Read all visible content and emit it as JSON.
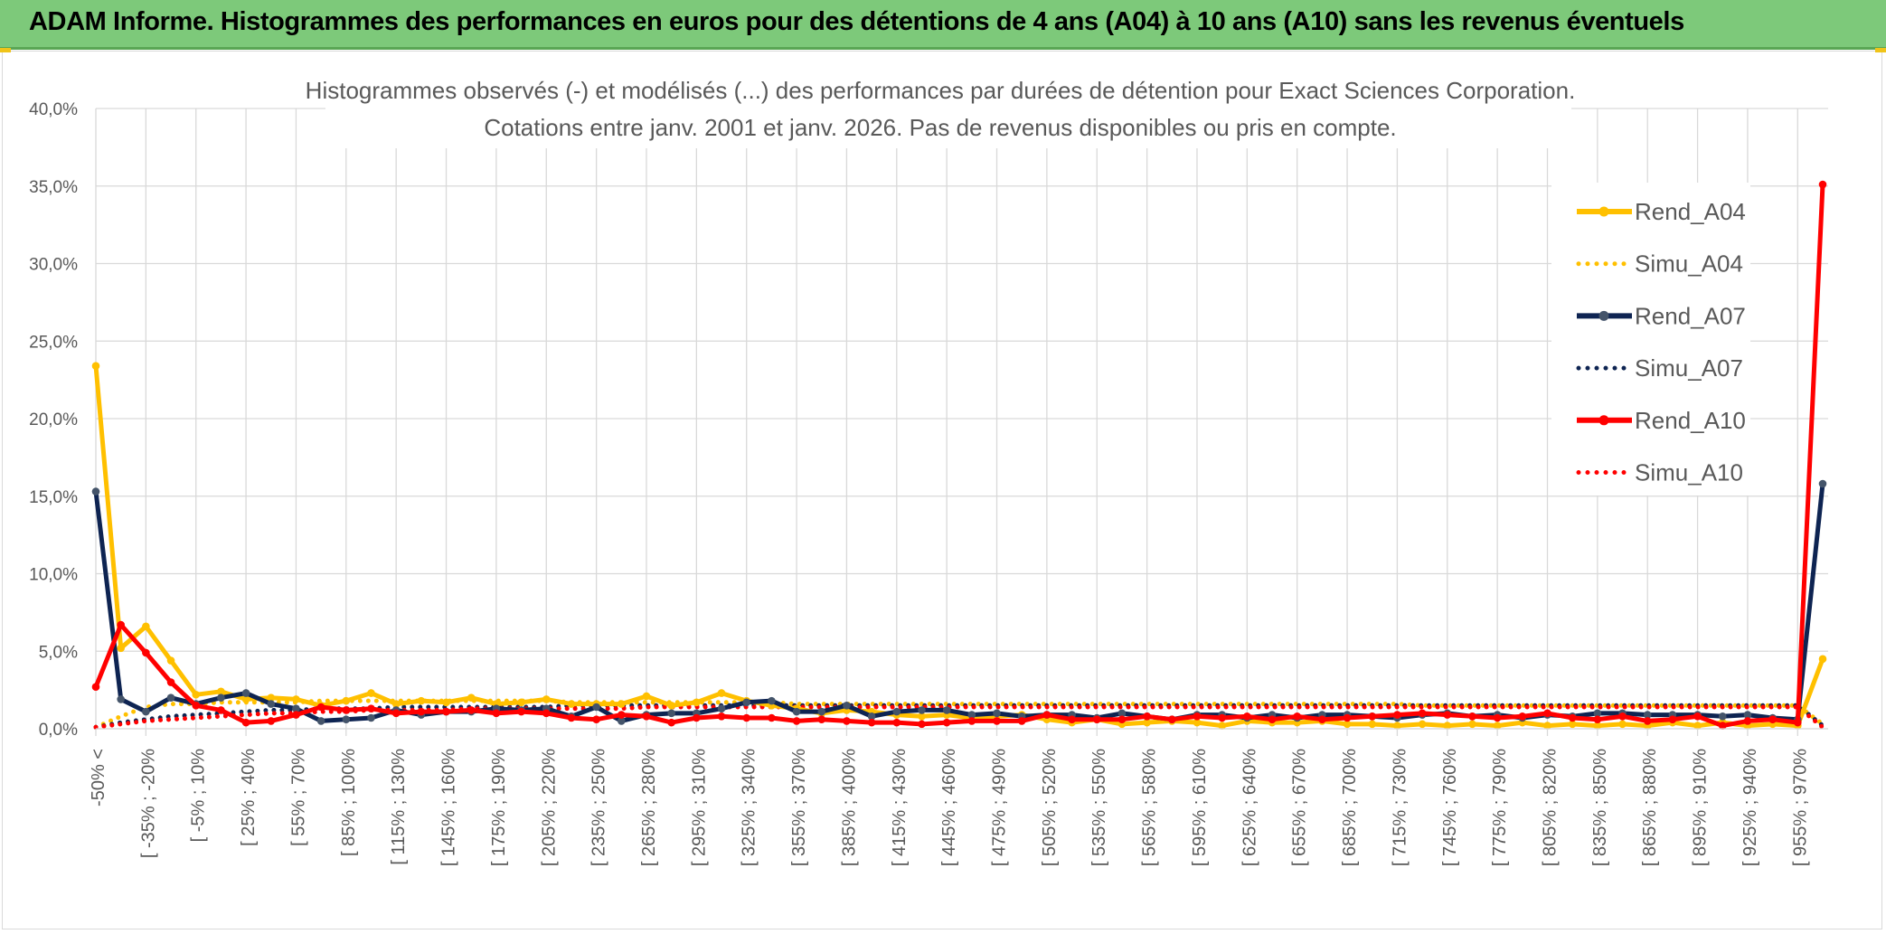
{
  "header": {
    "title": "ADAM Informe. Histogrammes des performances en euros pour des détentions de 4 ans (A04) à 10 ans (A10) sans les revenus éventuels"
  },
  "chart_data": {
    "type": "line",
    "title_line1": "Histogrammes observés (-) et modélisés (...) des performances par durées de détention pour Exact Sciences Corporation.",
    "title_line2": "Cotations entre janv. 2001 et janv. 2026. Pas de revenus disponibles ou pris en compte.",
    "ylim": [
      0,
      40
    ],
    "y_ticks": [
      "0,0%",
      "5,0%",
      "10,0%",
      "15,0%",
      "20,0%",
      "25,0%",
      "30,0%",
      "35,0%",
      "40,0%"
    ],
    "x_tick_labels": [
      "-50% <",
      "[ -35% ; -20%",
      "[ -5% ; 10%",
      "[ 25% ; 40%",
      "[ 55% ; 70%",
      "[ 85% ; 100%",
      "[ 115% ; 130%",
      "[ 145% ; 160%",
      "[ 175% ; 190%",
      "[ 205% ; 220%",
      "[ 235% ; 250%",
      "[ 265% ; 280%",
      "[ 295% ; 310%",
      "[ 325% ; 340%",
      "[ 355% ; 370%",
      "[ 385% ; 400%",
      "[ 415% ; 430%",
      "[ 445% ; 460%",
      "[ 475% ; 490%",
      "[ 505% ; 520%",
      "[ 535% ; 550%",
      "[ 565% ; 580%",
      "[ 595% ; 610%",
      "[ 625% ; 640%",
      "[ 655% ; 670%",
      "[ 685% ; 700%",
      "[ 715% ; 730%",
      "[ 745% ; 760%",
      "[ 775% ; 790%",
      "[ 805% ; 820%",
      "[ 835% ; 850%",
      "[ 865% ; 880%",
      "[ 895% ; 910%",
      "[ 925% ; 940%",
      "[ 955% ; 970%"
    ],
    "n_categories": 70,
    "series": [
      {
        "name": "Rend_A04",
        "style": "solid",
        "color": "#ffc000",
        "values": [
          23.4,
          5.2,
          6.6,
          4.4,
          2.2,
          2.4,
          1.9,
          2.0,
          1.9,
          1.5,
          1.8,
          2.3,
          1.6,
          1.8,
          1.7,
          2.0,
          1.6,
          1.7,
          1.9,
          1.6,
          1.6,
          1.6,
          2.1,
          1.5,
          1.7,
          2.3,
          1.8,
          1.5,
          1.3,
          1.0,
          1.2,
          1.1,
          0.9,
          0.8,
          0.9,
          0.7,
          0.8,
          0.9,
          0.6,
          0.4,
          0.6,
          0.3,
          0.4,
          0.5,
          0.4,
          0.2,
          0.5,
          0.4,
          0.4,
          0.5,
          0.3,
          0.3,
          0.2,
          0.3,
          0.2,
          0.3,
          0.2,
          0.4,
          0.2,
          0.3,
          0.2,
          0.3,
          0.2,
          0.4,
          0.2,
          0.4,
          0.2,
          0.3,
          0.2,
          4.5
        ]
      },
      {
        "name": "Simu_A04",
        "style": "dotted",
        "color": "#ffc000",
        "values": [
          0.1,
          0.8,
          1.4,
          1.6,
          1.6,
          1.7,
          1.7,
          1.7,
          1.7,
          1.8,
          1.8,
          1.8,
          1.8,
          1.8,
          1.8,
          1.8,
          1.8,
          1.8,
          1.8,
          1.7,
          1.7,
          1.7,
          1.7,
          1.7,
          1.7,
          1.7,
          1.7,
          1.7,
          1.6,
          1.6,
          1.6,
          1.6,
          1.6,
          1.6,
          1.6,
          1.6,
          1.6,
          1.6,
          1.6,
          1.6,
          1.6,
          1.6,
          1.6,
          1.6,
          1.6,
          1.6,
          1.6,
          1.6,
          1.6,
          1.6,
          1.6,
          1.6,
          1.6,
          1.5,
          1.5,
          1.5,
          1.5,
          1.5,
          1.5,
          1.5,
          1.5,
          1.5,
          1.5,
          1.5,
          1.5,
          1.5,
          1.5,
          1.5,
          1.5,
          0.3
        ]
      },
      {
        "name": "Rend_A07",
        "style": "solid",
        "color": "#0e2452",
        "values": [
          15.3,
          1.9,
          1.1,
          2.0,
          1.6,
          2.0,
          2.3,
          1.6,
          1.3,
          0.5,
          0.6,
          0.7,
          1.2,
          0.9,
          1.1,
          1.1,
          1.3,
          1.2,
          1.3,
          0.8,
          1.4,
          0.5,
          0.9,
          1.0,
          1.0,
          1.3,
          1.7,
          1.8,
          1.1,
          1.1,
          1.5,
          0.8,
          1.1,
          1.2,
          1.2,
          0.9,
          1.0,
          0.8,
          0.9,
          0.9,
          0.7,
          1.0,
          0.8,
          0.6,
          0.9,
          0.9,
          0.7,
          0.9,
          0.7,
          0.9,
          0.9,
          0.8,
          0.7,
          0.9,
          1.0,
          0.8,
          0.9,
          0.7,
          0.9,
          0.8,
          1.0,
          1.0,
          0.9,
          0.9,
          0.9,
          0.8,
          0.9,
          0.7,
          0.6,
          15.8
        ]
      },
      {
        "name": "Simu_A07",
        "style": "dotted",
        "color": "#0e2452",
        "values": [
          0.1,
          0.4,
          0.6,
          0.8,
          0.9,
          1.0,
          1.1,
          1.2,
          1.2,
          1.3,
          1.3,
          1.3,
          1.4,
          1.4,
          1.4,
          1.4,
          1.4,
          1.4,
          1.4,
          1.5,
          1.5,
          1.5,
          1.5,
          1.5,
          1.5,
          1.5,
          1.5,
          1.5,
          1.5,
          1.5,
          1.5,
          1.5,
          1.5,
          1.5,
          1.5,
          1.5,
          1.5,
          1.5,
          1.5,
          1.5,
          1.5,
          1.5,
          1.5,
          1.5,
          1.5,
          1.5,
          1.5,
          1.5,
          1.5,
          1.5,
          1.5,
          1.5,
          1.5,
          1.5,
          1.5,
          1.5,
          1.5,
          1.5,
          1.5,
          1.5,
          1.5,
          1.5,
          1.5,
          1.5,
          1.5,
          1.5,
          1.5,
          1.5,
          1.5,
          0.2
        ]
      },
      {
        "name": "Rend_A10",
        "style": "solid",
        "color": "#ff0000",
        "values": [
          2.7,
          6.7,
          4.9,
          3.0,
          1.5,
          1.2,
          0.4,
          0.5,
          0.9,
          1.4,
          1.2,
          1.3,
          1.0,
          1.1,
          1.1,
          1.2,
          1.0,
          1.1,
          1.0,
          0.7,
          0.6,
          0.9,
          0.8,
          0.4,
          0.7,
          0.8,
          0.7,
          0.7,
          0.5,
          0.6,
          0.5,
          0.4,
          0.4,
          0.3,
          0.4,
          0.5,
          0.5,
          0.5,
          0.9,
          0.6,
          0.6,
          0.6,
          0.8,
          0.6,
          0.8,
          0.7,
          0.8,
          0.6,
          0.8,
          0.6,
          0.7,
          0.8,
          0.9,
          1.0,
          0.9,
          0.8,
          0.7,
          0.8,
          1.0,
          0.7,
          0.6,
          0.8,
          0.5,
          0.6,
          0.8,
          0.2,
          0.5,
          0.6,
          0.4,
          35.1
        ]
      },
      {
        "name": "Simu_A10",
        "style": "dotted",
        "color": "#ff0000",
        "values": [
          0.1,
          0.3,
          0.5,
          0.6,
          0.7,
          0.8,
          0.9,
          1.0,
          1.0,
          1.1,
          1.1,
          1.2,
          1.2,
          1.2,
          1.2,
          1.3,
          1.3,
          1.3,
          1.3,
          1.3,
          1.3,
          1.3,
          1.4,
          1.4,
          1.4,
          1.4,
          1.4,
          1.4,
          1.4,
          1.4,
          1.4,
          1.4,
          1.4,
          1.4,
          1.4,
          1.4,
          1.4,
          1.4,
          1.4,
          1.4,
          1.4,
          1.4,
          1.4,
          1.4,
          1.4,
          1.4,
          1.4,
          1.4,
          1.4,
          1.4,
          1.4,
          1.4,
          1.4,
          1.4,
          1.4,
          1.4,
          1.4,
          1.4,
          1.4,
          1.4,
          1.4,
          1.4,
          1.4,
          1.4,
          1.4,
          1.4,
          1.4,
          1.4,
          1.4,
          0.1
        ]
      }
    ]
  }
}
